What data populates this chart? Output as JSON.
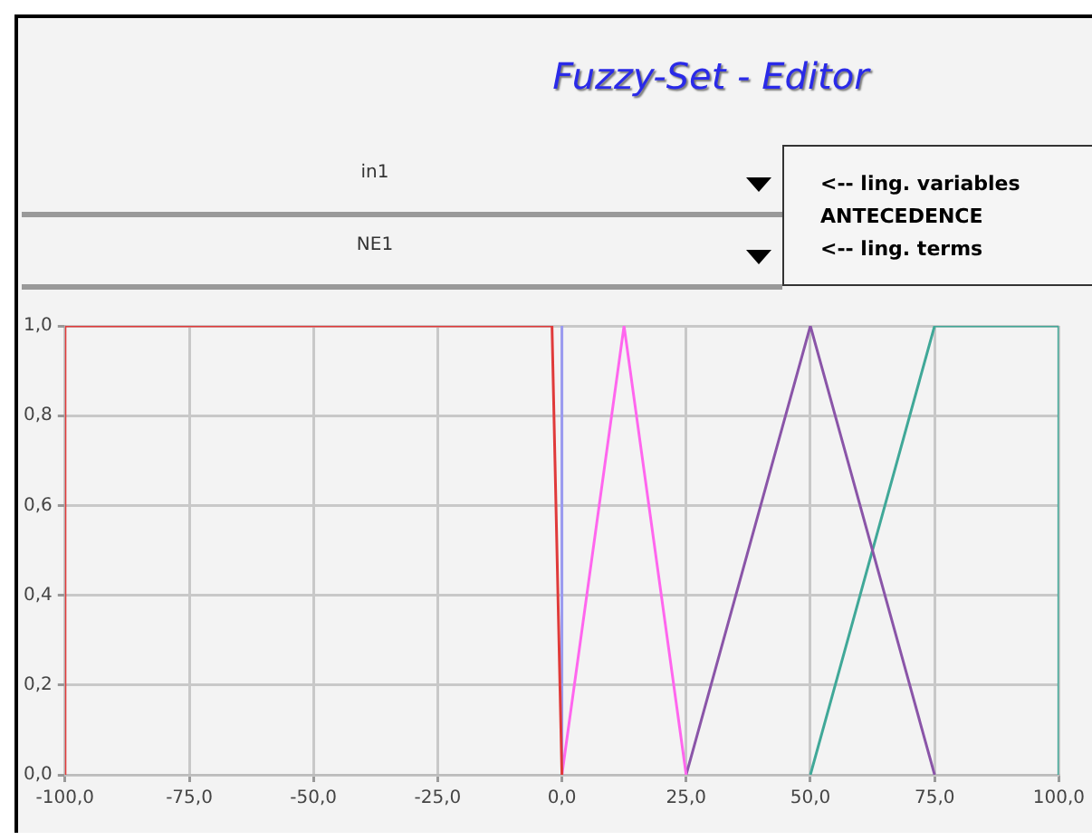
{
  "chart_data": {
    "type": "line",
    "title": "Fuzzy-Set - Editor",
    "annotations": [
      "in1",
      "NE1",
      "<-- ling. variables",
      "ANTECEDENCE",
      "<-- ling. terms"
    ],
    "series": [
      {
        "color": "#e03a3a",
        "x": [
          -100,
          -100,
          -2,
          0
        ],
        "values": [
          0,
          1,
          1,
          0
        ]
      },
      {
        "color": "#9a9af0",
        "x": [
          0,
          0
        ],
        "values": [
          0,
          1
        ]
      },
      {
        "color": "#ff66ee",
        "x": [
          0,
          12.5,
          25
        ],
        "values": [
          0,
          1,
          0
        ]
      },
      {
        "color": "#8a55a8",
        "x": [
          25,
          50,
          75
        ],
        "values": [
          0,
          1,
          0
        ]
      },
      {
        "color": "#40a898",
        "x": [
          50,
          75,
          100,
          100
        ],
        "values": [
          0,
          1,
          1,
          0
        ]
      }
    ],
    "xlim": [
      -100,
      100
    ],
    "xticks": [
      {
        "value": -100,
        "label": "-100,0"
      },
      {
        "value": -75,
        "label": "-75,0"
      },
      {
        "value": -50,
        "label": "-50,0"
      },
      {
        "value": -25,
        "label": "-25,0"
      },
      {
        "value": 0,
        "label": "0,0"
      },
      {
        "value": 25,
        "label": "25,0"
      },
      {
        "value": 50,
        "label": "50,0"
      },
      {
        "value": 75,
        "label": "75,0"
      },
      {
        "value": 100,
        "label": "100,0"
      }
    ],
    "ylim": [
      0,
      1
    ],
    "yticks": [
      {
        "value": 0,
        "label": "0,0"
      },
      {
        "value": 0.2,
        "label": "0,2"
      },
      {
        "value": 0.4,
        "label": "0,4"
      },
      {
        "value": 0.6,
        "label": "0,6"
      },
      {
        "value": 0.8,
        "label": "0,8"
      },
      {
        "value": 1,
        "label": "1,0"
      }
    ],
    "grid": true,
    "legend": false,
    "marker": "none",
    "line_style": "solid"
  }
}
